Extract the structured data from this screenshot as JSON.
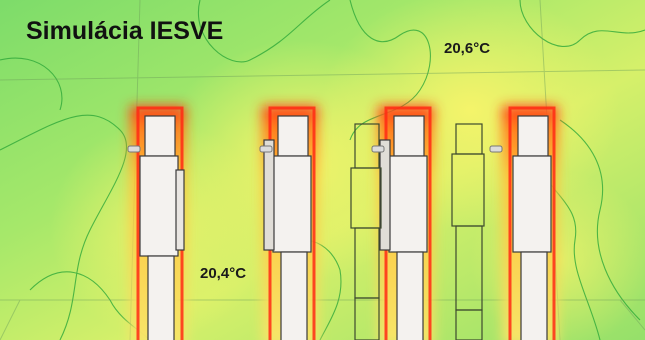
{
  "title": "Simulácia IESVE",
  "temperature_labels": {
    "upper": "20,6°C",
    "lower": "20,4°C"
  },
  "colors": {
    "field_green": "#8fe26a",
    "field_yellow": "#f2f36a",
    "hot_orange": "#ff8a1e",
    "hot_red": "#ff2a14",
    "isoline": "#2fa83a",
    "radiator_fill": "#f4f2ef",
    "radiator_outline": "#3a3a3a"
  },
  "legend": {
    "heated_radiators": 4,
    "unheated_outlines": 2
  }
}
